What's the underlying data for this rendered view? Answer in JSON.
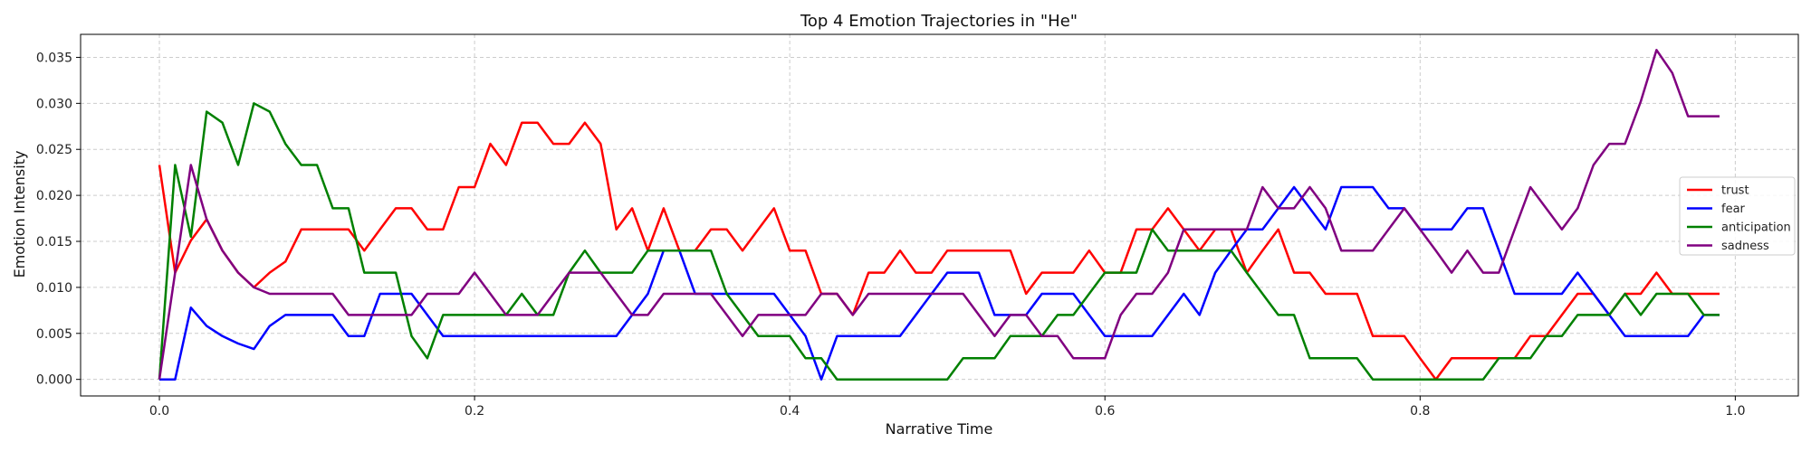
{
  "chart_data": {
    "type": "line",
    "title": "Top 4 Emotion Trajectories in \"He\"",
    "xlabel": "Narrative Time",
    "ylabel": "Emotion Intensity",
    "xlim": [
      -0.05,
      1.04
    ],
    "ylim": [
      -0.0018,
      0.0375
    ],
    "xticks": [
      0.0,
      0.2,
      0.4,
      0.6,
      0.8,
      1.0
    ],
    "xtick_labels": [
      "0.0",
      "0.2",
      "0.4",
      "0.6",
      "0.8",
      "1.0"
    ],
    "yticks": [
      0.0,
      0.005,
      0.01,
      0.015,
      0.02,
      0.025,
      0.03,
      0.035
    ],
    "ytick_labels": [
      "0.000",
      "0.005",
      "0.010",
      "0.015",
      "0.020",
      "0.025",
      "0.030",
      "0.035"
    ],
    "grid": true,
    "legend_position": "right",
    "x": [
      0.0,
      0.01,
      0.02,
      0.03,
      0.04,
      0.05,
      0.06,
      0.07,
      0.08,
      0.09,
      0.1,
      0.11,
      0.12,
      0.13,
      0.14,
      0.15,
      0.16,
      0.17,
      0.18,
      0.19,
      0.2,
      0.21,
      0.22,
      0.23,
      0.24,
      0.25,
      0.26,
      0.27,
      0.28,
      0.29,
      0.3,
      0.31,
      0.32,
      0.33,
      0.34,
      0.35,
      0.36,
      0.37,
      0.38,
      0.39,
      0.4,
      0.41,
      0.42,
      0.43,
      0.44,
      0.45,
      0.46,
      0.47,
      0.48,
      0.49,
      0.5,
      0.51,
      0.52,
      0.53,
      0.54,
      0.55,
      0.56,
      0.57,
      0.58,
      0.59,
      0.6,
      0.61,
      0.62,
      0.63,
      0.64,
      0.65,
      0.66,
      0.67,
      0.68,
      0.69,
      0.7,
      0.71,
      0.72,
      0.73,
      0.74,
      0.75,
      0.76,
      0.77,
      0.78,
      0.79,
      0.8,
      0.81,
      0.82,
      0.83,
      0.84,
      0.85,
      0.86,
      0.87,
      0.88,
      0.89,
      0.9,
      0.91,
      0.92,
      0.93,
      0.94,
      0.95,
      0.96,
      0.97,
      0.98,
      0.99
    ],
    "series": [
      {
        "name": "trust",
        "color": "#ff0000",
        "values": [
          0.0233,
          0.0116,
          0.0151,
          0.0174,
          0.014,
          0.0116,
          0.01,
          0.0116,
          0.0128,
          0.0163,
          0.0163,
          0.0163,
          0.0163,
          0.014,
          0.0163,
          0.0186,
          0.0186,
          0.0163,
          0.0163,
          0.0209,
          0.0209,
          0.0256,
          0.0233,
          0.0279,
          0.0279,
          0.0256,
          0.0256,
          0.0279,
          0.0256,
          0.0163,
          0.0186,
          0.014,
          0.0186,
          0.014,
          0.014,
          0.0163,
          0.0163,
          0.014,
          0.0163,
          0.0186,
          0.014,
          0.014,
          0.0093,
          0.0093,
          0.007,
          0.0116,
          0.0116,
          0.014,
          0.0116,
          0.0116,
          0.014,
          0.014,
          0.014,
          0.014,
          0.014,
          0.0093,
          0.0116,
          0.0116,
          0.0116,
          0.014,
          0.0116,
          0.0116,
          0.0163,
          0.0163,
          0.0186,
          0.0163,
          0.014,
          0.0163,
          0.0163,
          0.0116,
          0.014,
          0.0163,
          0.0116,
          0.0116,
          0.0093,
          0.0093,
          0.0093,
          0.0047,
          0.0047,
          0.0047,
          0.0023,
          0.0,
          0.0023,
          0.0023,
          0.0023,
          0.0023,
          0.0023,
          0.0047,
          0.0047,
          0.007,
          0.0093,
          0.0093,
          0.007,
          0.0093,
          0.0093,
          0.0116,
          0.0093,
          0.0093,
          0.0093,
          0.0093
        ]
      },
      {
        "name": "fear",
        "color": "#0000ff",
        "values": [
          0.0,
          0.0,
          0.0078,
          0.0058,
          0.0047,
          0.0039,
          0.0033,
          0.0058,
          0.007,
          0.007,
          0.007,
          0.007,
          0.0047,
          0.0047,
          0.0093,
          0.0093,
          0.0093,
          0.007,
          0.0047,
          0.0047,
          0.0047,
          0.0047,
          0.0047,
          0.0047,
          0.0047,
          0.0047,
          0.0047,
          0.0047,
          0.0047,
          0.0047,
          0.007,
          0.0093,
          0.014,
          0.014,
          0.0093,
          0.0093,
          0.0093,
          0.0093,
          0.0093,
          0.0093,
          0.007,
          0.0047,
          0.0,
          0.0047,
          0.0047,
          0.0047,
          0.0047,
          0.0047,
          0.007,
          0.0093,
          0.0116,
          0.0116,
          0.0116,
          0.007,
          0.007,
          0.007,
          0.0093,
          0.0093,
          0.0093,
          0.007,
          0.0047,
          0.0047,
          0.0047,
          0.0047,
          0.007,
          0.0093,
          0.007,
          0.0116,
          0.014,
          0.0163,
          0.0163,
          0.0186,
          0.0209,
          0.0186,
          0.0163,
          0.0209,
          0.0209,
          0.0209,
          0.0186,
          0.0186,
          0.0163,
          0.0163,
          0.0163,
          0.0186,
          0.0186,
          0.014,
          0.0093,
          0.0093,
          0.0093,
          0.0093,
          0.0116,
          0.0093,
          0.007,
          0.0047,
          0.0047,
          0.0047,
          0.0047,
          0.0047,
          0.007,
          0.007
        ]
      },
      {
        "name": "anticipation",
        "color": "#008000",
        "values": [
          0.0,
          0.0233,
          0.0155,
          0.0291,
          0.0279,
          0.0233,
          0.03,
          0.0291,
          0.0256,
          0.0233,
          0.0233,
          0.0186,
          0.0186,
          0.0116,
          0.0116,
          0.0116,
          0.0047,
          0.0023,
          0.007,
          0.007,
          0.007,
          0.007,
          0.007,
          0.0093,
          0.007,
          0.007,
          0.0116,
          0.014,
          0.0116,
          0.0116,
          0.0116,
          0.014,
          0.014,
          0.014,
          0.014,
          0.014,
          0.0093,
          0.007,
          0.0047,
          0.0047,
          0.0047,
          0.0023,
          0.0023,
          0.0,
          0.0,
          0.0,
          0.0,
          0.0,
          0.0,
          0.0,
          0.0,
          0.0023,
          0.0023,
          0.0023,
          0.0047,
          0.0047,
          0.0047,
          0.007,
          0.007,
          0.0093,
          0.0116,
          0.0116,
          0.0116,
          0.0163,
          0.014,
          0.014,
          0.014,
          0.014,
          0.014,
          0.0116,
          0.0093,
          0.007,
          0.007,
          0.0023,
          0.0023,
          0.0023,
          0.0023,
          0.0,
          0.0,
          0.0,
          0.0,
          0.0,
          0.0,
          0.0,
          0.0,
          0.0023,
          0.0023,
          0.0023,
          0.0047,
          0.0047,
          0.007,
          0.007,
          0.007,
          0.0093,
          0.007,
          0.0093,
          0.0093,
          0.0093,
          0.007,
          0.007
        ]
      },
      {
        "name": "sadness",
        "color": "#800080",
        "values": [
          0.0,
          0.0116,
          0.0233,
          0.0174,
          0.014,
          0.0116,
          0.01,
          0.0093,
          0.0093,
          0.0093,
          0.0093,
          0.0093,
          0.007,
          0.007,
          0.007,
          0.007,
          0.007,
          0.0093,
          0.0093,
          0.0093,
          0.0116,
          0.0093,
          0.007,
          0.007,
          0.007,
          0.0093,
          0.0116,
          0.0116,
          0.0116,
          0.0093,
          0.007,
          0.007,
          0.0093,
          0.0093,
          0.0093,
          0.0093,
          0.007,
          0.0047,
          0.007,
          0.007,
          0.007,
          0.007,
          0.0093,
          0.0093,
          0.007,
          0.0093,
          0.0093,
          0.0093,
          0.0093,
          0.0093,
          0.0093,
          0.0093,
          0.007,
          0.0047,
          0.007,
          0.007,
          0.0047,
          0.0047,
          0.0023,
          0.0023,
          0.0023,
          0.007,
          0.0093,
          0.0093,
          0.0116,
          0.0163,
          0.0163,
          0.0163,
          0.0163,
          0.0163,
          0.0209,
          0.0186,
          0.0186,
          0.0209,
          0.0186,
          0.014,
          0.014,
          0.014,
          0.0163,
          0.0186,
          0.0163,
          0.014,
          0.0116,
          0.014,
          0.0116,
          0.0116,
          0.0163,
          0.0209,
          0.0186,
          0.0163,
          0.0186,
          0.0233,
          0.0256,
          0.0256,
          0.0302,
          0.0358,
          0.0333,
          0.0286,
          0.0286,
          0.0286
        ]
      }
    ]
  }
}
